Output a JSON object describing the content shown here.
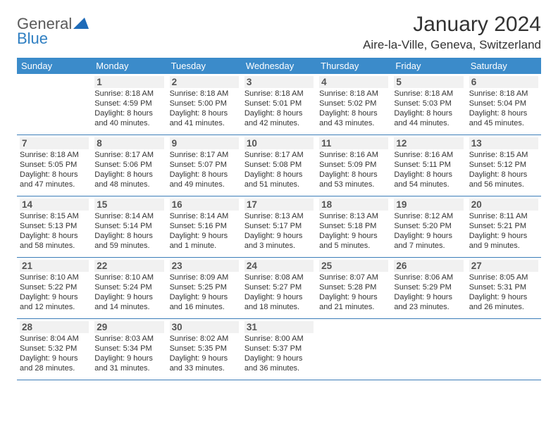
{
  "logo": {
    "text1": "General",
    "text2": "Blue"
  },
  "title": "January 2024",
  "location": "Aire-la-Ville, Geneva, Switzerland",
  "colors": {
    "header_bg": "#3b8bca",
    "header_text": "#ffffff",
    "rule": "#3b7db8",
    "daynum_bg": "#f1f1f1",
    "daynum_text": "#555555",
    "body_text": "#333333",
    "logo_gray": "#5a5a5a",
    "logo_blue": "#2f7fc2"
  },
  "day_names": [
    "Sunday",
    "Monday",
    "Tuesday",
    "Wednesday",
    "Thursday",
    "Friday",
    "Saturday"
  ],
  "first_weekday_index": 1,
  "days": [
    {
      "n": 1,
      "sunrise": "8:18 AM",
      "sunset": "4:59 PM",
      "daylight": "8 hours and 40 minutes."
    },
    {
      "n": 2,
      "sunrise": "8:18 AM",
      "sunset": "5:00 PM",
      "daylight": "8 hours and 41 minutes."
    },
    {
      "n": 3,
      "sunrise": "8:18 AM",
      "sunset": "5:01 PM",
      "daylight": "8 hours and 42 minutes."
    },
    {
      "n": 4,
      "sunrise": "8:18 AM",
      "sunset": "5:02 PM",
      "daylight": "8 hours and 43 minutes."
    },
    {
      "n": 5,
      "sunrise": "8:18 AM",
      "sunset": "5:03 PM",
      "daylight": "8 hours and 44 minutes."
    },
    {
      "n": 6,
      "sunrise": "8:18 AM",
      "sunset": "5:04 PM",
      "daylight": "8 hours and 45 minutes."
    },
    {
      "n": 7,
      "sunrise": "8:18 AM",
      "sunset": "5:05 PM",
      "daylight": "8 hours and 47 minutes."
    },
    {
      "n": 8,
      "sunrise": "8:17 AM",
      "sunset": "5:06 PM",
      "daylight": "8 hours and 48 minutes."
    },
    {
      "n": 9,
      "sunrise": "8:17 AM",
      "sunset": "5:07 PM",
      "daylight": "8 hours and 49 minutes."
    },
    {
      "n": 10,
      "sunrise": "8:17 AM",
      "sunset": "5:08 PM",
      "daylight": "8 hours and 51 minutes."
    },
    {
      "n": 11,
      "sunrise": "8:16 AM",
      "sunset": "5:09 PM",
      "daylight": "8 hours and 53 minutes."
    },
    {
      "n": 12,
      "sunrise": "8:16 AM",
      "sunset": "5:11 PM",
      "daylight": "8 hours and 54 minutes."
    },
    {
      "n": 13,
      "sunrise": "8:15 AM",
      "sunset": "5:12 PM",
      "daylight": "8 hours and 56 minutes."
    },
    {
      "n": 14,
      "sunrise": "8:15 AM",
      "sunset": "5:13 PM",
      "daylight": "8 hours and 58 minutes."
    },
    {
      "n": 15,
      "sunrise": "8:14 AM",
      "sunset": "5:14 PM",
      "daylight": "8 hours and 59 minutes."
    },
    {
      "n": 16,
      "sunrise": "8:14 AM",
      "sunset": "5:16 PM",
      "daylight": "9 hours and 1 minute."
    },
    {
      "n": 17,
      "sunrise": "8:13 AM",
      "sunset": "5:17 PM",
      "daylight": "9 hours and 3 minutes."
    },
    {
      "n": 18,
      "sunrise": "8:13 AM",
      "sunset": "5:18 PM",
      "daylight": "9 hours and 5 minutes."
    },
    {
      "n": 19,
      "sunrise": "8:12 AM",
      "sunset": "5:20 PM",
      "daylight": "9 hours and 7 minutes."
    },
    {
      "n": 20,
      "sunrise": "8:11 AM",
      "sunset": "5:21 PM",
      "daylight": "9 hours and 9 minutes."
    },
    {
      "n": 21,
      "sunrise": "8:10 AM",
      "sunset": "5:22 PM",
      "daylight": "9 hours and 12 minutes."
    },
    {
      "n": 22,
      "sunrise": "8:10 AM",
      "sunset": "5:24 PM",
      "daylight": "9 hours and 14 minutes."
    },
    {
      "n": 23,
      "sunrise": "8:09 AM",
      "sunset": "5:25 PM",
      "daylight": "9 hours and 16 minutes."
    },
    {
      "n": 24,
      "sunrise": "8:08 AM",
      "sunset": "5:27 PM",
      "daylight": "9 hours and 18 minutes."
    },
    {
      "n": 25,
      "sunrise": "8:07 AM",
      "sunset": "5:28 PM",
      "daylight": "9 hours and 21 minutes."
    },
    {
      "n": 26,
      "sunrise": "8:06 AM",
      "sunset": "5:29 PM",
      "daylight": "9 hours and 23 minutes."
    },
    {
      "n": 27,
      "sunrise": "8:05 AM",
      "sunset": "5:31 PM",
      "daylight": "9 hours and 26 minutes."
    },
    {
      "n": 28,
      "sunrise": "8:04 AM",
      "sunset": "5:32 PM",
      "daylight": "9 hours and 28 minutes."
    },
    {
      "n": 29,
      "sunrise": "8:03 AM",
      "sunset": "5:34 PM",
      "daylight": "9 hours and 31 minutes."
    },
    {
      "n": 30,
      "sunrise": "8:02 AM",
      "sunset": "5:35 PM",
      "daylight": "9 hours and 33 minutes."
    },
    {
      "n": 31,
      "sunrise": "8:00 AM",
      "sunset": "5:37 PM",
      "daylight": "9 hours and 36 minutes."
    }
  ],
  "labels": {
    "sunrise": "Sunrise:",
    "sunset": "Sunset:",
    "daylight": "Daylight:"
  }
}
